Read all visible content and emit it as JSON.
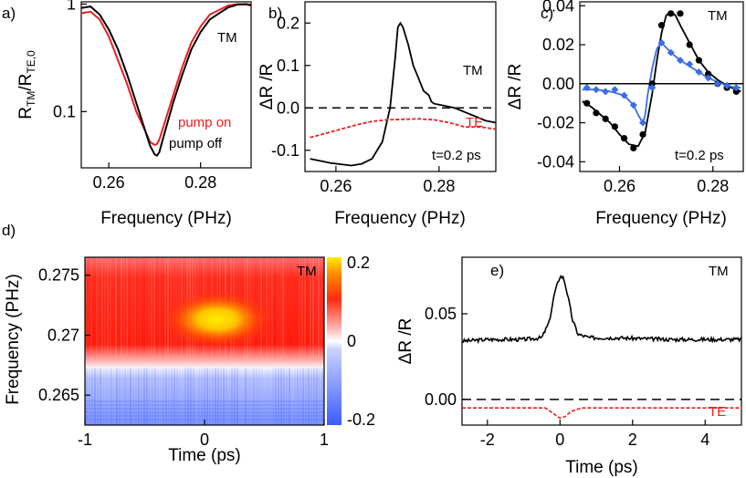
{
  "colors": {
    "black": "#000000",
    "red": "#ee1c1c",
    "blue": "#3a6ee6",
    "heat_low": "#3b5bff",
    "heat_mid": "#ffffff",
    "heat_high": "#ff1a00",
    "heat_top": "#ffee00"
  },
  "chart_data": [
    {
      "id": "a",
      "panel_label": "a)",
      "type": "line",
      "xlabel": "Frequency (PHz)",
      "ylabel_main": "R",
      "ylabel_sub1": "TM",
      "ylabel_sep": "/R",
      "ylabel_sub2": "TE,0",
      "xlim": [
        0.254,
        0.291
      ],
      "ylim": [
        0.03,
        1.05
      ],
      "yscale": "log",
      "xticks": [
        0.26,
        0.28
      ],
      "xtick_labels": [
        "0.26",
        "0.28"
      ],
      "yticks": [
        1,
        0.1
      ],
      "ytick_labels": [
        "1",
        "0.1"
      ],
      "annotations": {
        "tm": "TM",
        "pump_on": "pump on",
        "pump_off": "pump off"
      },
      "series": [
        {
          "name": "pump off",
          "color": "#000000",
          "x": [
            0.254,
            0.256,
            0.258,
            0.26,
            0.262,
            0.264,
            0.266,
            0.268,
            0.269,
            0.27,
            0.2705,
            0.271,
            0.272,
            0.274,
            0.276,
            0.278,
            0.28,
            0.282,
            0.284,
            0.286,
            0.288,
            0.29,
            0.291
          ],
          "y": [
            0.92,
            0.95,
            0.8,
            0.58,
            0.38,
            0.22,
            0.12,
            0.065,
            0.048,
            0.04,
            0.039,
            0.042,
            0.06,
            0.12,
            0.22,
            0.38,
            0.55,
            0.72,
            0.82,
            0.93,
            0.99,
            1.0,
            0.98
          ]
        },
        {
          "name": "pump on",
          "color": "#ee1c1c",
          "x": [
            0.254,
            0.256,
            0.258,
            0.26,
            0.262,
            0.264,
            0.266,
            0.268,
            0.269,
            0.27,
            0.2705,
            0.271,
            0.272,
            0.274,
            0.276,
            0.278,
            0.28,
            0.282,
            0.284,
            0.286,
            0.288,
            0.29,
            0.291
          ],
          "y": [
            0.82,
            0.85,
            0.72,
            0.5,
            0.3,
            0.18,
            0.1,
            0.065,
            0.052,
            0.049,
            0.05,
            0.055,
            0.075,
            0.14,
            0.26,
            0.44,
            0.62,
            0.8,
            0.88,
            0.97,
            1.0,
            0.99,
            0.97
          ]
        }
      ]
    },
    {
      "id": "b",
      "panel_label": "b)",
      "type": "line",
      "xlabel": "Frequency (PHz)",
      "ylabel": "ΔR /R",
      "xlim": [
        0.254,
        0.291
      ],
      "ylim": [
        -0.15,
        0.25
      ],
      "xticks": [
        0.26,
        0.28
      ],
      "xtick_labels": [
        "0.26",
        "0.28"
      ],
      "yticks": [
        0.2,
        0.1,
        0.0,
        -0.1
      ],
      "ytick_labels": [
        "0.2",
        "0.1",
        "0.0",
        "-0.1"
      ],
      "annotations": {
        "tm": "TM",
        "te": "TE",
        "time": "t=0.2 ps"
      },
      "series": [
        {
          "name": "TM",
          "color": "#000000",
          "x": [
            0.255,
            0.257,
            0.259,
            0.261,
            0.263,
            0.265,
            0.267,
            0.269,
            0.2705,
            0.2715,
            0.272,
            0.2725,
            0.273,
            0.274,
            0.275,
            0.276,
            0.277,
            0.278,
            0.2785,
            0.279,
            0.281,
            0.283,
            0.285,
            0.287,
            0.289,
            0.291
          ],
          "y": [
            -0.12,
            -0.125,
            -0.13,
            -0.133,
            -0.136,
            -0.132,
            -0.12,
            -0.08,
            0.0,
            0.12,
            0.19,
            0.2,
            0.19,
            0.15,
            0.1,
            0.07,
            0.04,
            0.03,
            0.015,
            0.01,
            0.005,
            0.0,
            -0.01,
            -0.02,
            -0.03,
            -0.035
          ]
        },
        {
          "name": "TE",
          "color": "#ee1c1c",
          "x": [
            0.255,
            0.258,
            0.261,
            0.264,
            0.267,
            0.27,
            0.273,
            0.276,
            0.279,
            0.282,
            0.285,
            0.288,
            0.291
          ],
          "y": [
            -0.07,
            -0.06,
            -0.05,
            -0.04,
            -0.032,
            -0.028,
            -0.027,
            -0.026,
            -0.028,
            -0.035,
            -0.045,
            -0.045,
            -0.05
          ]
        }
      ],
      "reference_line": 0.0
    },
    {
      "id": "c",
      "panel_label": "c)",
      "type": "scatter",
      "xlabel": "Frequency (PHz)",
      "ylabel": "ΔR /R",
      "xlim": [
        0.2515,
        0.2865
      ],
      "ylim": [
        -0.045,
        0.042
      ],
      "xticks": [
        0.26,
        0.28
      ],
      "xtick_labels": [
        "0.26",
        "0.28"
      ],
      "yticks": [
        0.04,
        0.02,
        0.0,
        -0.02,
        -0.04
      ],
      "ytick_labels": [
        "0.04",
        "0.02",
        "0.00",
        "-0.02",
        "-0.04"
      ],
      "annotations": {
        "tm": "TM",
        "time": "t=0.2 ps"
      },
      "series": [
        {
          "name": "black",
          "color": "#000000",
          "marker": "circle",
          "x": [
            0.253,
            0.255,
            0.257,
            0.259,
            0.261,
            0.263,
            0.265,
            0.267,
            0.269,
            0.271,
            0.273,
            0.275,
            0.277,
            0.279,
            0.281,
            0.283,
            0.285
          ],
          "y": [
            -0.01,
            -0.015,
            -0.018,
            -0.022,
            -0.028,
            -0.033,
            -0.026,
            0.0,
            0.03,
            0.036,
            0.036,
            0.02,
            0.012,
            0.005,
            0.0,
            -0.002,
            -0.004
          ]
        },
        {
          "name": "blue",
          "color": "#3a6ee6",
          "marker": "diamond",
          "x": [
            0.253,
            0.255,
            0.257,
            0.259,
            0.261,
            0.263,
            0.265,
            0.267,
            0.269,
            0.271,
            0.273,
            0.275,
            0.277,
            0.279,
            0.281,
            0.283,
            0.285
          ],
          "y": [
            -0.002,
            -0.003,
            -0.004,
            -0.003,
            -0.006,
            -0.011,
            -0.02,
            -0.002,
            0.021,
            0.016,
            0.012,
            0.01,
            0.006,
            0.003,
            0.0,
            -0.001,
            -0.002
          ]
        }
      ],
      "fits": [
        {
          "color": "#000000",
          "x": [
            0.252,
            0.254,
            0.256,
            0.258,
            0.26,
            0.262,
            0.264,
            0.2655,
            0.267,
            0.268,
            0.269,
            0.27,
            0.271,
            0.272,
            0.273,
            0.275,
            0.277,
            0.279,
            0.281,
            0.283,
            0.285,
            0.286
          ],
          "y": [
            -0.009,
            -0.012,
            -0.016,
            -0.02,
            -0.026,
            -0.031,
            -0.032,
            -0.025,
            -0.005,
            0.012,
            0.026,
            0.035,
            0.037,
            0.035,
            0.03,
            0.021,
            0.012,
            0.006,
            0.002,
            -0.001,
            -0.003,
            -0.004
          ]
        },
        {
          "color": "#3a6ee6",
          "x": [
            0.252,
            0.255,
            0.258,
            0.261,
            0.263,
            0.264,
            0.265,
            0.2655,
            0.266,
            0.267,
            0.268,
            0.269,
            0.271,
            0.273,
            0.275,
            0.277,
            0.279,
            0.281,
            0.283,
            0.285,
            0.286
          ],
          "y": [
            -0.003,
            -0.003,
            -0.004,
            -0.006,
            -0.011,
            -0.016,
            -0.02,
            -0.016,
            -0.006,
            0.008,
            0.018,
            0.021,
            0.016,
            0.012,
            0.009,
            0.006,
            0.003,
            0.001,
            -0.001,
            -0.002,
            -0.002
          ]
        }
      ],
      "reference_line": 0.0
    },
    {
      "id": "d",
      "panel_label": "d)",
      "type": "heatmap",
      "xlabel": "Time (ps)",
      "ylabel": "Frequency (PHz)",
      "xlim": [
        -1,
        1
      ],
      "ylim": [
        0.2625,
        0.2765
      ],
      "xticks": [
        -1,
        0,
        1
      ],
      "xtick_labels": [
        "-1",
        "0",
        "1"
      ],
      "yticks": [
        0.275,
        0.27,
        0.265
      ],
      "ytick_labels": [
        "0.275",
        "0.27",
        "0.265"
      ],
      "colorbar": {
        "ticks": [
          0.2,
          0,
          -0.2
        ],
        "labels": [
          "0.2",
          "0",
          "-0.2"
        ],
        "range": [
          -0.2,
          0.2
        ]
      },
      "annotations": {
        "tm": "TM"
      }
    },
    {
      "id": "e",
      "panel_label": "e)",
      "type": "line",
      "xlabel": "Time (ps)",
      "ylabel": "ΔR /R",
      "xlim": [
        -2.7,
        5
      ],
      "ylim": [
        -0.015,
        0.083
      ],
      "xticks": [
        -2,
        0,
        2,
        4
      ],
      "xtick_labels": [
        "-2",
        "0",
        "2",
        "4"
      ],
      "yticks": [
        0.05,
        0.0
      ],
      "ytick_labels": [
        "0.05",
        "0.00"
      ],
      "annotations": {
        "tm": "TM",
        "te": "TE"
      },
      "series": [
        {
          "name": "TM",
          "color": "#000000",
          "x": [
            -2.7,
            -2.0,
            -1.0,
            -0.5,
            -0.3,
            -0.15,
            0.0,
            0.1,
            0.2,
            0.35,
            0.5,
            0.8,
            1.5,
            3.0,
            5.0
          ],
          "y": [
            0.034,
            0.035,
            0.035,
            0.036,
            0.045,
            0.062,
            0.072,
            0.071,
            0.062,
            0.046,
            0.038,
            0.036,
            0.036,
            0.035,
            0.035
          ]
        },
        {
          "name": "TE",
          "color": "#ee1c1c",
          "x": [
            -2.7,
            -1.0,
            -0.4,
            -0.2,
            0.0,
            0.15,
            0.3,
            0.6,
            1.0,
            2.0,
            5.0
          ],
          "y": [
            -0.005,
            -0.005,
            -0.005,
            -0.008,
            -0.011,
            -0.01,
            -0.007,
            -0.005,
            -0.005,
            -0.005,
            -0.005
          ]
        }
      ],
      "reference_line": 0.0
    }
  ]
}
